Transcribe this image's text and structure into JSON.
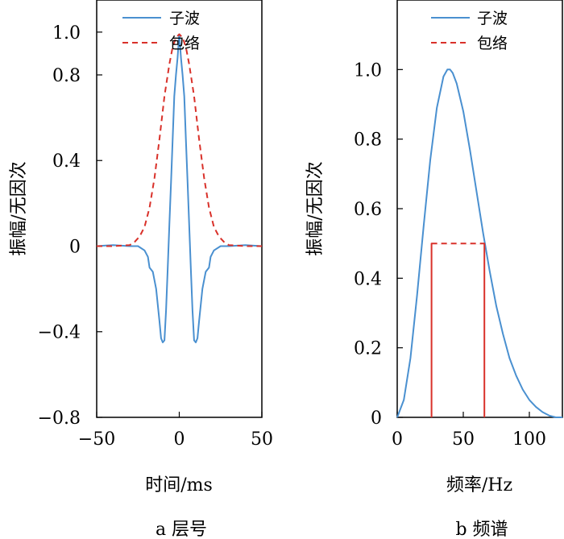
{
  "colors": {
    "wavelet": "#4a90d0",
    "envelope": "#d9312a",
    "axis": "#000000"
  },
  "chart_data": [
    {
      "type": "line",
      "caption": "a  层号",
      "xlabel": "时间/ms",
      "ylabel": "振幅/无因次",
      "xlim": [
        -50,
        50
      ],
      "ylim": [
        -0.8,
        1.15
      ],
      "xticks": [
        -50,
        0,
        50
      ],
      "xtick_labels": [
        "−50",
        "0",
        "50"
      ],
      "yticks": [
        -0.8,
        -0.4,
        0,
        0.4,
        0.8,
        1.0
      ],
      "ytick_labels": [
        "−0.8",
        "−0.4",
        "0",
        "0.4",
        "0.8",
        "1.0"
      ],
      "legend": [
        "子波",
        "包络"
      ],
      "series": [
        {
          "name": "子波",
          "style": "solid",
          "x": [
            -50,
            -40,
            -30,
            -25,
            -21,
            -19,
            -18,
            -16,
            -14,
            -12,
            -11,
            -10,
            -9,
            -8,
            -7,
            -6,
            -5,
            -4,
            -3,
            -2,
            -1,
            0,
            1,
            2,
            3,
            4,
            5,
            6,
            7,
            8,
            9,
            10,
            11,
            12,
            14,
            16,
            18,
            19,
            21,
            25,
            30,
            40,
            50
          ],
          "y": [
            0,
            0.005,
            0,
            0,
            -0.02,
            -0.05,
            -0.1,
            -0.12,
            -0.2,
            -0.35,
            -0.43,
            -0.45,
            -0.44,
            -0.3,
            -0.1,
            0.1,
            0.3,
            0.5,
            0.7,
            0.8,
            0.88,
            0.99,
            0.88,
            0.8,
            0.7,
            0.5,
            0.3,
            0.1,
            -0.1,
            -0.3,
            -0.44,
            -0.45,
            -0.43,
            -0.35,
            -0.2,
            -0.12,
            -0.1,
            -0.05,
            -0.02,
            0,
            0,
            0.005,
            0
          ]
        },
        {
          "name": "包络",
          "style": "dashed",
          "x": [
            -50,
            -40,
            -30,
            -27,
            -24,
            -21,
            -18,
            -15,
            -12,
            -9,
            -6,
            -4,
            -2,
            0,
            2,
            4,
            6,
            9,
            12,
            15,
            18,
            21,
            24,
            27,
            30,
            40,
            50
          ],
          "y": [
            0,
            0,
            0.005,
            0.02,
            0.045,
            0.09,
            0.18,
            0.32,
            0.5,
            0.7,
            0.85,
            0.93,
            0.975,
            0.99,
            0.975,
            0.93,
            0.85,
            0.7,
            0.5,
            0.32,
            0.18,
            0.09,
            0.045,
            0.02,
            0.005,
            0,
            0
          ]
        }
      ]
    },
    {
      "type": "line",
      "caption": "b  频谱",
      "xlabel": "频率/Hz",
      "ylabel": "振幅/无因次",
      "xlim": [
        0,
        125
      ],
      "ylim": [
        0,
        1.2
      ],
      "xticks": [
        0,
        50,
        100
      ],
      "xtick_labels": [
        "0",
        "50",
        "100"
      ],
      "yticks": [
        0,
        0.2,
        0.4,
        0.6,
        0.8,
        1.0
      ],
      "ytick_labels": [
        "0",
        "0.2",
        "0.4",
        "0.6",
        "0.8",
        "1.0"
      ],
      "legend": [
        "子波",
        "包络"
      ],
      "series": [
        {
          "name": "子波",
          "style": "solid",
          "x": [
            0,
            5,
            10,
            15,
            20,
            25,
            30,
            35,
            38,
            40,
            42,
            45,
            50,
            55,
            60,
            65,
            70,
            75,
            80,
            85,
            90,
            95,
            100,
            105,
            110,
            115,
            120,
            125
          ],
          "y": [
            0,
            0.05,
            0.17,
            0.35,
            0.55,
            0.74,
            0.89,
            0.98,
            1.0,
            1.0,
            0.99,
            0.96,
            0.88,
            0.77,
            0.65,
            0.53,
            0.42,
            0.32,
            0.24,
            0.17,
            0.12,
            0.08,
            0.05,
            0.03,
            0.015,
            0.005,
            0.0,
            0.0
          ]
        },
        {
          "name": "包络",
          "style": "dashed",
          "x": [
            26,
            26,
            66,
            66
          ],
          "y": [
            0,
            0.5,
            0.5,
            0
          ]
        }
      ]
    }
  ]
}
